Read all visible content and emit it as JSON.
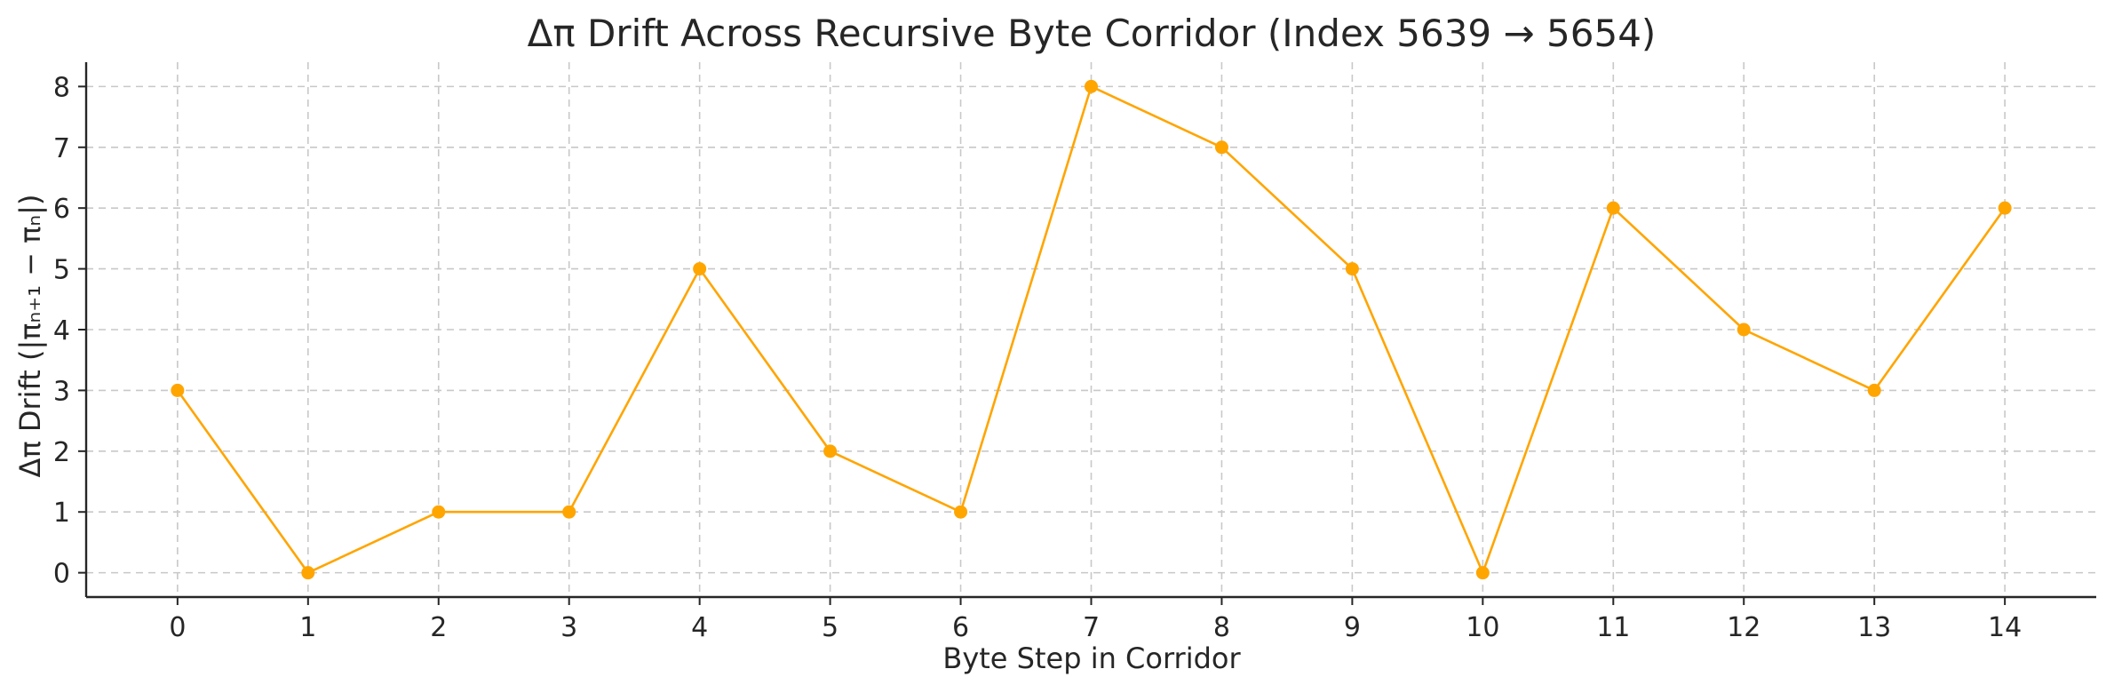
{
  "chart_data": {
    "type": "line",
    "title": "Δπ Drift Across Recursive Byte Corridor (Index 5639 → 5654)",
    "xlabel": "Byte Step in Corridor",
    "ylabel": "Δπ Drift (|πₙ₊₁ − πₙ|)",
    "x": [
      0,
      1,
      2,
      3,
      4,
      5,
      6,
      7,
      8,
      9,
      10,
      11,
      12,
      13,
      14
    ],
    "series": [
      {
        "values": [
          3,
          0,
          1,
          1,
          5,
          2,
          1,
          8,
          7,
          5,
          0,
          6,
          4,
          3,
          6
        ]
      }
    ],
    "xlim": [
      -0.7,
      14.7
    ],
    "ylim": [
      -0.4,
      8.4
    ],
    "yticks": [
      0,
      1,
      2,
      3,
      4,
      5,
      6,
      7,
      8
    ],
    "grid": true,
    "marker": "circle",
    "colors": {
      "line": "#FFA500",
      "marker": "#FFA500"
    }
  }
}
